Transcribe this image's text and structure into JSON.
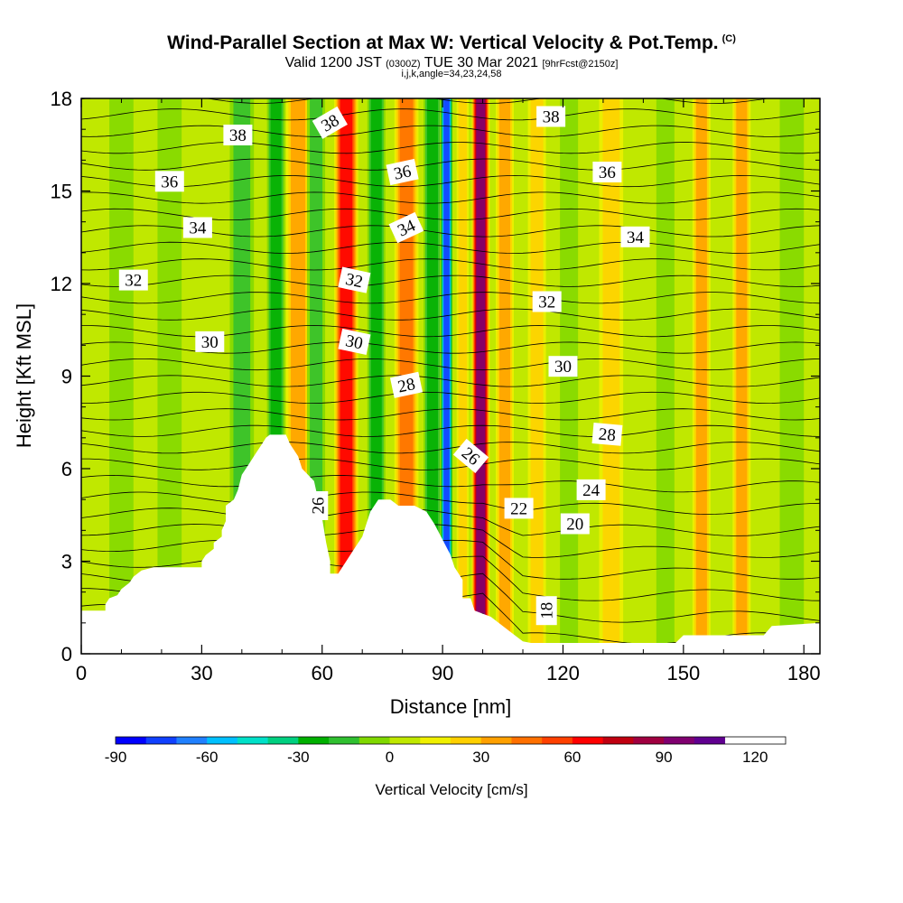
{
  "title": {
    "main": "Wind-Parallel Section at Max W: Vertical Velocity & Pot.Temp.",
    "copyright": "(C)",
    "valid_prefix": "Valid 1200 JST",
    "valid_utc": "(0300Z)",
    "valid_date": "TUE 30 Mar 2021",
    "forecast": "[9hrFcst@2150z]",
    "indices": "i,j,k,angle=34,23,24,58"
  },
  "chart_data": {
    "type": "heatmap",
    "xlabel": "Distance [nm]",
    "ylabel": "Height [Kft MSL]",
    "xlim": [
      0,
      184
    ],
    "ylim": [
      0,
      18
    ],
    "x_ticks": [
      "0",
      "30",
      "60",
      "90",
      "120",
      "150",
      "180"
    ],
    "y_ticks": [
      "0",
      "3",
      "6",
      "9",
      "12",
      "15",
      "18"
    ],
    "colorbar": {
      "label": "Vertical Velocity [cm/s]",
      "range": [
        -90,
        130
      ],
      "step": 10,
      "tick_labels": [
        "-90",
        "-60",
        "-30",
        "0",
        "30",
        "60",
        "90",
        "120"
      ],
      "colors": [
        "#0000ff",
        "#1040ff",
        "#2080ff",
        "#00c0ff",
        "#00e0c8",
        "#00d080",
        "#00b000",
        "#30c030",
        "#80d800",
        "#c0e800",
        "#f0f000",
        "#ffd000",
        "#ffa000",
        "#ff7000",
        "#ff4000",
        "#ff0000",
        "#c00010",
        "#a00040",
        "#800070",
        "#600090"
      ]
    },
    "vertical_velocity_bands": [
      {
        "x": 8,
        "w": 4,
        "value": -5
      },
      {
        "x": 20,
        "w": 4,
        "value": -8
      },
      {
        "x": 38,
        "w": 4,
        "value": -12
      },
      {
        "x": 47,
        "w": 3,
        "value": -25
      },
      {
        "x": 52,
        "w": 4,
        "value": 25
      },
      {
        "x": 57,
        "w": 3,
        "value": -15
      },
      {
        "x": 64,
        "w": 4,
        "value": 55
      },
      {
        "x": 72,
        "w": 3,
        "value": -25
      },
      {
        "x": 79,
        "w": 4,
        "value": 35
      },
      {
        "x": 86,
        "w": 3,
        "value": -25
      },
      {
        "x": 90,
        "w": 2,
        "value": -80
      },
      {
        "x": 94,
        "w": 2,
        "value": 20
      },
      {
        "x": 98,
        "w": 3,
        "value": 85
      },
      {
        "x": 104,
        "w": 3,
        "value": 30
      },
      {
        "x": 112,
        "w": 3,
        "value": 15
      },
      {
        "x": 120,
        "w": 3,
        "value": -8
      },
      {
        "x": 130,
        "w": 4,
        "value": 12
      },
      {
        "x": 144,
        "w": 3,
        "value": -10
      },
      {
        "x": 153,
        "w": 3,
        "value": 25
      },
      {
        "x": 163,
        "w": 3,
        "value": 30
      },
      {
        "x": 175,
        "w": 4,
        "value": -8
      }
    ],
    "terrain": {
      "x": [
        0,
        6,
        6,
        7,
        9,
        10,
        12,
        13,
        15,
        18,
        30,
        30,
        31,
        33,
        33,
        35,
        35,
        36,
        36,
        38,
        39,
        40,
        41,
        42,
        43,
        44,
        45,
        46,
        47,
        51,
        52,
        54,
        55,
        58,
        59,
        60,
        61,
        62,
        62,
        64,
        65,
        66,
        68,
        70,
        71,
        72,
        73,
        74,
        75,
        76,
        77,
        78,
        79,
        80,
        81,
        82,
        83,
        86,
        88,
        90,
        92,
        93,
        95,
        95,
        97,
        98,
        102,
        105,
        108,
        110,
        112,
        148,
        150,
        152,
        160,
        170,
        172,
        184
      ],
      "y": [
        1.4,
        1.4,
        1.6,
        1.8,
        1.9,
        2.1,
        2.3,
        2.5,
        2.7,
        2.8,
        2.8,
        3.0,
        3.2,
        3.4,
        3.6,
        3.8,
        4.0,
        4.3,
        4.8,
        5.0,
        5.3,
        5.8,
        6.0,
        6.2,
        6.4,
        6.6,
        6.8,
        7.0,
        7.1,
        7.1,
        6.8,
        6.4,
        6.0,
        5.6,
        5.0,
        4.4,
        3.6,
        3.0,
        2.6,
        2.6,
        2.8,
        3.0,
        3.4,
        3.8,
        4.2,
        4.6,
        4.8,
        5.0,
        5.0,
        5.0,
        5.0,
        4.9,
        4.8,
        4.8,
        4.8,
        4.8,
        4.8,
        4.6,
        4.2,
        3.7,
        3.2,
        2.8,
        2.4,
        1.8,
        1.8,
        1.4,
        1.2,
        0.9,
        0.6,
        0.4,
        0.35,
        0.35,
        0.6,
        0.6,
        0.6,
        0.6,
        0.9,
        1.0
      ]
    },
    "theta_labels": [
      {
        "text": "38",
        "x": 39,
        "y": 16.8,
        "rot": 0
      },
      {
        "text": "38",
        "x": 62,
        "y": 17.2,
        "rot": -30
      },
      {
        "text": "38",
        "x": 117,
        "y": 17.4,
        "rot": 0
      },
      {
        "text": "36",
        "x": 22,
        "y": 15.3,
        "rot": 0
      },
      {
        "text": "36",
        "x": 80,
        "y": 15.6,
        "rot": -12
      },
      {
        "text": "36",
        "x": 131,
        "y": 15.6,
        "rot": 0
      },
      {
        "text": "34",
        "x": 29,
        "y": 13.8,
        "rot": 0
      },
      {
        "text": "34",
        "x": 81,
        "y": 13.8,
        "rot": -25
      },
      {
        "text": "34",
        "x": 138,
        "y": 13.5,
        "rot": 0
      },
      {
        "text": "32",
        "x": 13,
        "y": 12.1,
        "rot": 0
      },
      {
        "text": "32",
        "x": 68,
        "y": 12.1,
        "rot": 12
      },
      {
        "text": "32",
        "x": 116,
        "y": 11.4,
        "rot": 0
      },
      {
        "text": "30",
        "x": 32,
        "y": 10.1,
        "rot": 0
      },
      {
        "text": "30",
        "x": 68,
        "y": 10.1,
        "rot": 12
      },
      {
        "text": "30",
        "x": 120,
        "y": 9.3,
        "rot": 0
      },
      {
        "text": "28",
        "x": 81,
        "y": 8.7,
        "rot": -12
      },
      {
        "text": "28",
        "x": 131,
        "y": 7.1,
        "rot": 5
      },
      {
        "text": "26",
        "x": 97,
        "y": 6.4,
        "rot": 40
      },
      {
        "text": "26",
        "x": 59,
        "y": 4.8,
        "rot": -90
      },
      {
        "text": "24",
        "x": 127,
        "y": 5.3,
        "rot": 0
      },
      {
        "text": "22",
        "x": 109,
        "y": 4.7,
        "rot": 0
      },
      {
        "text": "20",
        "x": 123,
        "y": 4.2,
        "rot": 0
      },
      {
        "text": "18",
        "x": 116,
        "y": 1.4,
        "rot": -90
      }
    ]
  }
}
